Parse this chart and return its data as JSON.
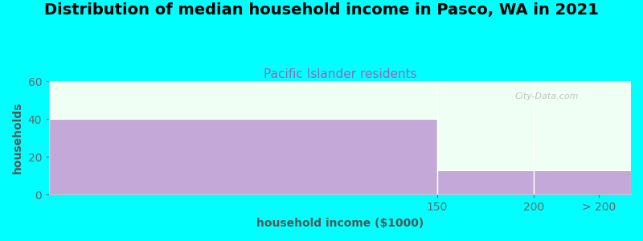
{
  "title": "Distribution of median household income in Pasco, WA in 2021",
  "subtitle": "Pacific Islander residents",
  "xlabel": "household income ($1000)",
  "ylabel": "households",
  "background_color": "#00FFFF",
  "plot_bg_color": "#F0FFF4",
  "bar_color": "#C4A8D8",
  "categories": [
    "150",
    "200",
    "> 200"
  ],
  "values": [
    40,
    13,
    13
  ],
  "ylim": [
    0,
    60
  ],
  "yticks": [
    0,
    20,
    40,
    60
  ],
  "title_fontsize": 14,
  "subtitle_fontsize": 11,
  "subtitle_color": "#9966BB",
  "axis_label_color": "#555555",
  "tick_color": "#666666",
  "watermark": "City-Data.com",
  "x_edges": [
    0,
    150,
    175,
    200,
    225
  ],
  "xlim": [
    0,
    225
  ],
  "xtick_positions": [
    150,
    200,
    212.5
  ],
  "xtick_labels": [
    "150",
    "200",
    "> 200"
  ]
}
